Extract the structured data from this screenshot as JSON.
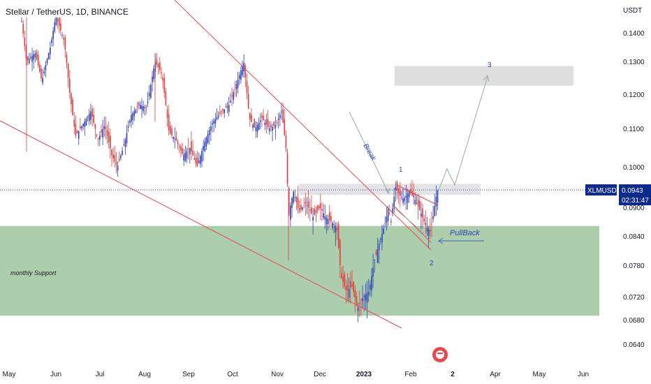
{
  "title": "Stellar / TetherUS, 1D, BINANCE",
  "chart_data": {
    "type": "candlestick",
    "symbol": "XLMUSDT",
    "last_price": "0.0943",
    "countdown": "02:31:47",
    "y_axis_unit": "USDT",
    "y_ticks": [
      "0.1400",
      "0.1300",
      "0.1200",
      "0.1100",
      "0.1000",
      "0.0900",
      "0.0840",
      "0.0780",
      "0.0720",
      "0.0680",
      "0.0640"
    ],
    "x_ticks": [
      "May",
      "Jun",
      "Jul",
      "Aug",
      "Sep",
      "Oct",
      "Nov",
      "Dec",
      "2023",
      "Feb",
      "2",
      "Apr",
      "May",
      "Jun"
    ],
    "ylim": [
      0.061,
      0.146
    ],
    "zones": {
      "monthly_support": {
        "label": "monthly Support",
        "low": 0.0687,
        "high": 0.0861
      },
      "resistance_band": {
        "low": 0.0931,
        "high": 0.0958
      },
      "target_zone": {
        "low": 0.1226,
        "high": 0.1286
      }
    },
    "annotations": {
      "break": "Break",
      "pullback": "PullBack",
      "wave_1": "1",
      "wave_2": "2",
      "wave_3": "3"
    },
    "colors": {
      "up": "#2a3fb8",
      "down": "#e03a3a",
      "support_zone": "#9fc59f",
      "band": "#d9d9d9",
      "trendline": "#e8484f",
      "projection": "#9aaca3",
      "price_label": "#0d2b8a"
    }
  }
}
